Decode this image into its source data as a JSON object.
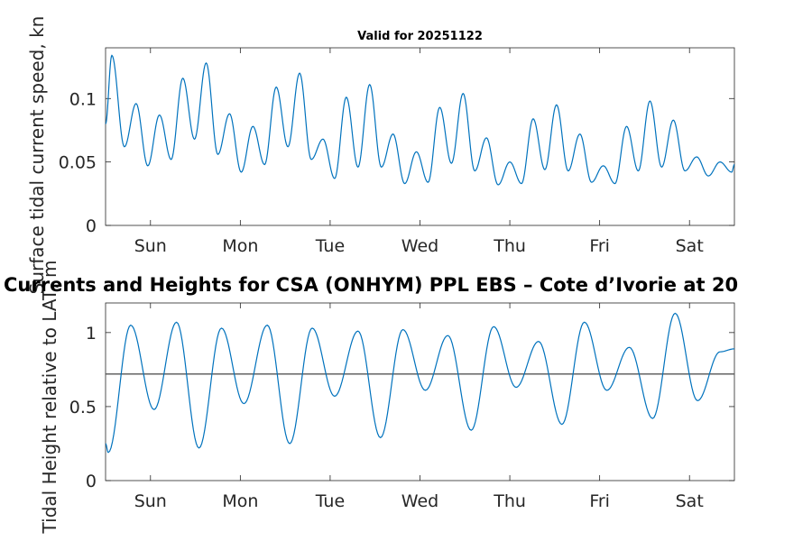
{
  "figure": {
    "subtitle": "Valid for 20251122",
    "main_title": "Currents and Heights for CSA (ONHYM) PPL EBS  – Cote d’Ivorie at 20",
    "line_color": "#0072bd",
    "mean_line_color": "#555555",
    "axes_color": "#262626"
  },
  "chart_data": [
    {
      "type": "line",
      "name": "surface-current-speed",
      "title": "Valid for 20251122",
      "ylabel": "Surface tidal current speed, kn",
      "xlim": [
        0,
        7
      ],
      "ylim": [
        0,
        0.14
      ],
      "xticks": [
        {
          "value": 0.5,
          "label": "Sun"
        },
        {
          "value": 1.5,
          "label": "Mon"
        },
        {
          "value": 2.5,
          "label": "Tue"
        },
        {
          "value": 3.5,
          "label": "Wed"
        },
        {
          "value": 4.5,
          "label": "Thu"
        },
        {
          "value": 5.5,
          "label": "Fri"
        },
        {
          "value": 6.5,
          "label": "Sat"
        }
      ],
      "yticks": [
        {
          "value": 0,
          "label": "0"
        },
        {
          "value": 0.05,
          "label": "0.05"
        },
        {
          "value": 0.1,
          "label": "0.1"
        }
      ],
      "series": [
        {
          "name": "Current speed",
          "x": [
            0,
            0.07,
            0.21,
            0.34,
            0.47,
            0.6,
            0.73,
            0.86,
            0.99,
            1.12,
            1.25,
            1.38,
            1.51,
            1.64,
            1.77,
            1.9,
            2.03,
            2.16,
            2.29,
            2.42,
            2.55,
            2.68,
            2.81,
            2.94,
            3.07,
            3.2,
            3.33,
            3.46,
            3.59,
            3.72,
            3.85,
            3.98,
            4.11,
            4.24,
            4.37,
            4.5,
            4.63,
            4.76,
            4.89,
            5.02,
            5.15,
            5.28,
            5.41,
            5.54,
            5.67,
            5.8,
            5.93,
            6.06,
            6.19,
            6.32,
            6.45,
            6.58,
            6.71,
            6.84,
            6.97,
            7.0
          ],
          "y": [
            0.08,
            0.134,
            0.062,
            0.096,
            0.047,
            0.087,
            0.052,
            0.116,
            0.068,
            0.128,
            0.056,
            0.088,
            0.042,
            0.078,
            0.048,
            0.109,
            0.062,
            0.12,
            0.052,
            0.068,
            0.037,
            0.101,
            0.046,
            0.111,
            0.046,
            0.072,
            0.033,
            0.058,
            0.034,
            0.093,
            0.049,
            0.104,
            0.043,
            0.069,
            0.032,
            0.05,
            0.033,
            0.084,
            0.044,
            0.095,
            0.043,
            0.072,
            0.034,
            0.047,
            0.033,
            0.078,
            0.043,
            0.098,
            0.046,
            0.083,
            0.043,
            0.054,
            0.039,
            0.05,
            0.042,
            0.048
          ]
        }
      ]
    },
    {
      "type": "line",
      "name": "tidal-height",
      "title": "Currents and Heights for CSA (ONHYM) PPL EBS  – Cote d’Ivorie at 20",
      "ylabel": "Tidal Height relative to LAT, m",
      "xlim": [
        0,
        7
      ],
      "ylim": [
        0,
        1.2
      ],
      "xticks": [
        {
          "value": 0.5,
          "label": "Sun"
        },
        {
          "value": 1.5,
          "label": "Mon"
        },
        {
          "value": 2.5,
          "label": "Tue"
        },
        {
          "value": 3.5,
          "label": "Wed"
        },
        {
          "value": 4.5,
          "label": "Thu"
        },
        {
          "value": 5.5,
          "label": "Fri"
        },
        {
          "value": 6.5,
          "label": "Sat"
        }
      ],
      "yticks": [
        {
          "value": 0,
          "label": "0"
        },
        {
          "value": 0.5,
          "label": "0.5"
        },
        {
          "value": 1,
          "label": "1"
        }
      ],
      "mean_level": 0.72,
      "series": [
        {
          "name": "Tidal height",
          "x": [
            0,
            0.03,
            0.28,
            0.54,
            0.79,
            1.04,
            1.29,
            1.54,
            1.8,
            2.05,
            2.3,
            2.55,
            2.81,
            3.06,
            3.31,
            3.56,
            3.81,
            4.07,
            4.32,
            4.57,
            4.82,
            5.08,
            5.33,
            5.58,
            5.83,
            6.09,
            6.34,
            6.59,
            6.84,
            7.0
          ],
          "y": [
            0.25,
            0.19,
            1.05,
            0.48,
            1.07,
            0.22,
            1.03,
            0.52,
            1.05,
            0.25,
            1.03,
            0.57,
            1.01,
            0.29,
            1.02,
            0.61,
            0.98,
            0.34,
            1.04,
            0.63,
            0.94,
            0.38,
            1.07,
            0.61,
            0.9,
            0.42,
            1.13,
            0.54,
            0.87,
            0.89
          ]
        }
      ]
    }
  ]
}
